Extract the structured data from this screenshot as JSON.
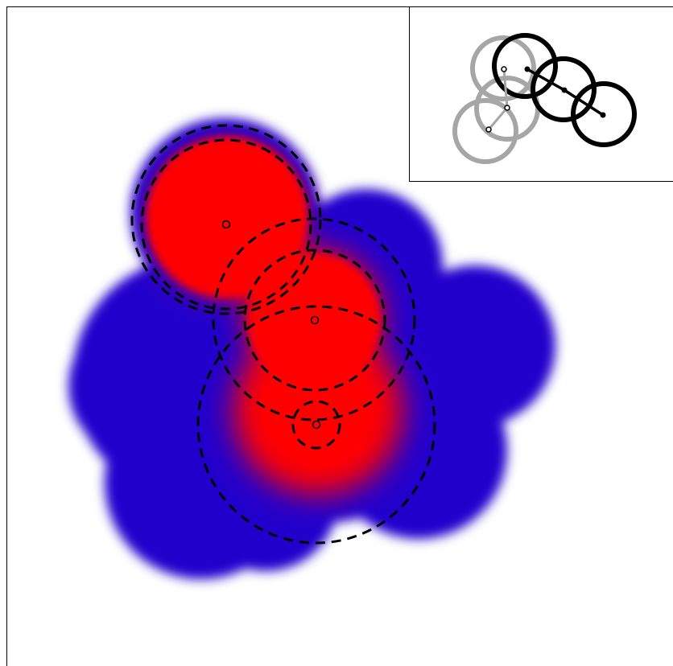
{
  "diagram": {
    "colors": {
      "inner_fill": "#ff0000",
      "outer_fill": "#2200cc",
      "outline": "#000000",
      "inset_primary": "#000000",
      "inset_secondary": "#a6a6a6",
      "background": "#ffffff"
    },
    "main_panel": {
      "blob_outline_style": "blurred",
      "dashed_circles_count": 6,
      "center_markers_count": 3
    },
    "inset_panel": {
      "black_rings_count": 3,
      "gray_rings_count": 3
    }
  }
}
